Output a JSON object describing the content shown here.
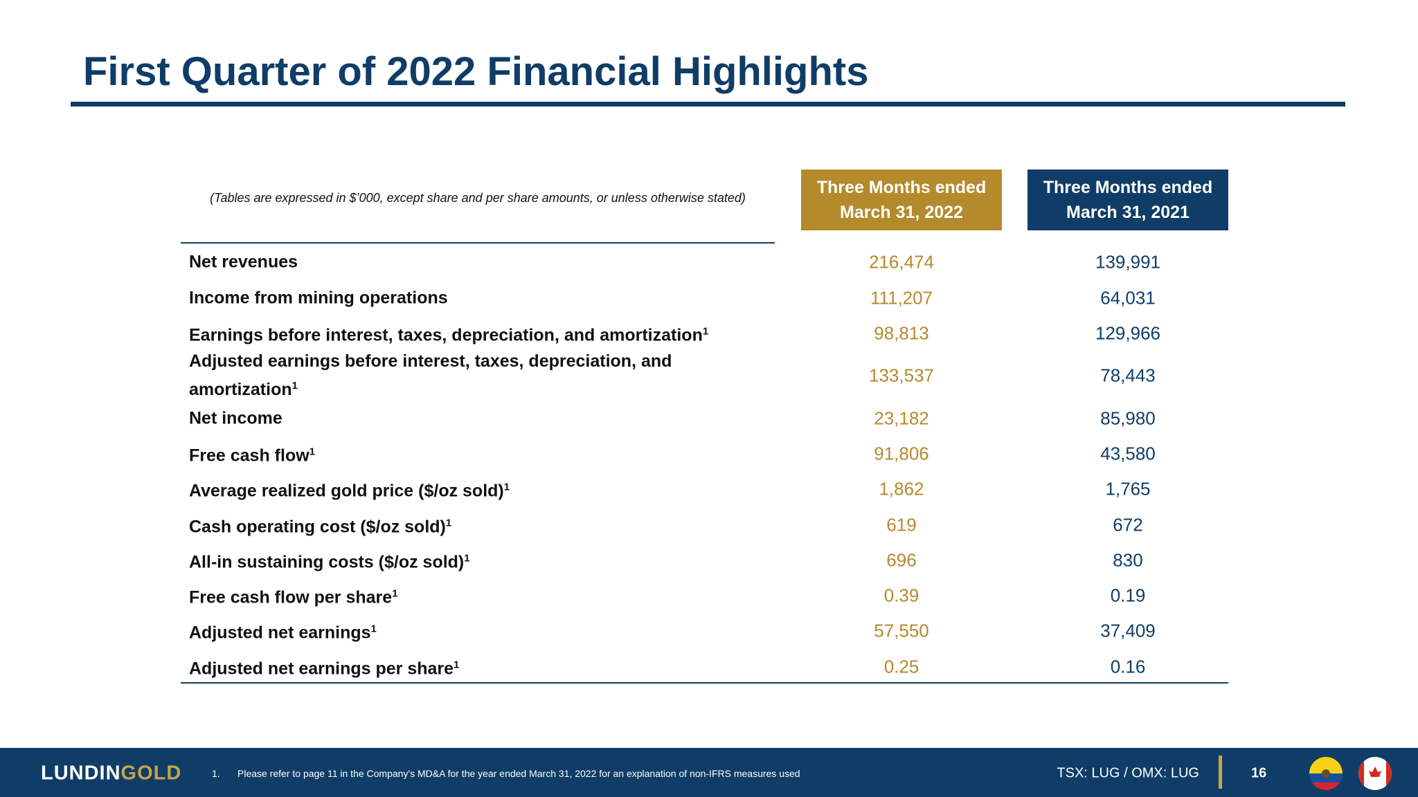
{
  "header": {
    "title": "First Quarter of 2022 Financial Highlights"
  },
  "table": {
    "note": "(Tables are expressed in $’000, except share and per share amounts, or unless otherwise stated)",
    "columns": [
      {
        "lines": [
          "Three Months ended",
          "March 31, 2022"
        ]
      },
      {
        "lines": [
          "Three Months ended",
          "March 31, 2021"
        ]
      }
    ],
    "rows": [
      {
        "label": "Net revenues",
        "values": [
          "216,474",
          "139,991"
        ]
      },
      {
        "label": "Income from mining operations",
        "values": [
          "111,207",
          "64,031"
        ]
      },
      {
        "label": "Earnings before interest, taxes, depreciation, and amortization",
        "sup": "1",
        "values": [
          "98,813",
          "129,966"
        ]
      },
      {
        "label": "Adjusted earnings before interest, taxes, depreciation, and amortization",
        "sup": "1",
        "values": [
          "133,537",
          "78,443"
        ]
      },
      {
        "label": "Net income",
        "values": [
          "23,182",
          "85,980"
        ]
      },
      {
        "label": "Free cash flow",
        "sup": "1",
        "values": [
          "91,806",
          "43,580"
        ]
      },
      {
        "label": "Average realized gold price ($/oz sold)",
        "sup": "1",
        "values": [
          "1,862",
          "1,765"
        ]
      },
      {
        "label": "Cash operating cost ($/oz sold)",
        "sup": "1",
        "values": [
          "619",
          "672"
        ]
      },
      {
        "label": "All-in sustaining costs ($/oz sold)",
        "sup": "1",
        "values": [
          "696",
          "830"
        ]
      },
      {
        "label": "Free cash flow per share",
        "sup": "1",
        "values": [
          "0.39",
          "0.19"
        ]
      },
      {
        "label": "Adjusted net earnings",
        "sup": "1",
        "values": [
          "57,550",
          "37,409"
        ]
      },
      {
        "label": "Adjusted net earnings per share",
        "sup": "1",
        "values": [
          "0.25",
          "0.16"
        ]
      }
    ]
  },
  "footer": {
    "logo": {
      "first": "LUNDIN",
      "second": "GOLD"
    },
    "footnote": {
      "number": "1.",
      "text": "Please refer to page 11 in the Company's MD&A for the year ended March 31, 2022 for an explanation of non-IFRS measures used"
    },
    "ticker": "TSX: LUG / OMX: LUG",
    "page": "16"
  }
}
